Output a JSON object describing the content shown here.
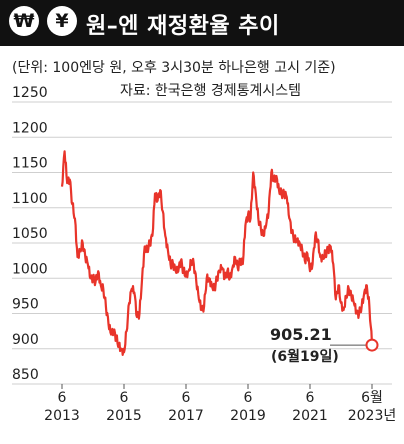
{
  "header": {
    "title": "원–엔 재정환율 추이",
    "icons": [
      "won-coin-icon",
      "yen-coin-icon"
    ],
    "won_symbol": "₩",
    "yen_symbol": "¥"
  },
  "notes": {
    "unit": "(단위: 100엔당 원, 오후 3시30분 하나은행 고시 기준)",
    "source": "자료: 한국은행 경제통계시스템"
  },
  "colors": {
    "line": "#e8342a",
    "header_bg": "#111111",
    "grid": "#cfcfcf"
  },
  "chart_data": {
    "type": "line",
    "title": "원–엔 재정환율 추이",
    "xlabel": "",
    "ylabel": "",
    "ylim": [
      850,
      1250
    ],
    "yticks": [
      850,
      900,
      950,
      1000,
      1050,
      1100,
      1150,
      1200,
      1250
    ],
    "xlim": [
      "2013-06",
      "2023-06"
    ],
    "xticks": [
      {
        "x": "2013-06",
        "month": "6",
        "year": "2013"
      },
      {
        "x": "2015-06",
        "month": "6",
        "year": "2015"
      },
      {
        "x": "2017-06",
        "month": "6",
        "year": "2017"
      },
      {
        "x": "2019-06",
        "month": "6",
        "year": "2019"
      },
      {
        "x": "2021-06",
        "month": "6",
        "year": "2021"
      },
      {
        "x": "2023-06",
        "month": "6월",
        "year": "2023년"
      }
    ],
    "grid": "horizontal",
    "series": [
      {
        "points": [
          [
            "2013-06",
            1130
          ],
          [
            "2013-07",
            1180
          ],
          [
            "2013-08",
            1135
          ],
          [
            "2013-09",
            1140
          ],
          [
            "2013-10",
            1105
          ],
          [
            "2013-11",
            1085
          ],
          [
            "2013-12",
            1030
          ],
          [
            "2014-01",
            1040
          ],
          [
            "2014-02",
            1050
          ],
          [
            "2014-03",
            1030
          ],
          [
            "2014-04",
            1020
          ],
          [
            "2014-05",
            1000
          ],
          [
            "2014-06",
            1000
          ],
          [
            "2014-07",
            995
          ],
          [
            "2014-08",
            1010
          ],
          [
            "2014-09",
            990
          ],
          [
            "2014-10",
            985
          ],
          [
            "2014-11",
            960
          ],
          [
            "2014-12",
            935
          ],
          [
            "2015-01",
            920
          ],
          [
            "2015-02",
            925
          ],
          [
            "2015-03",
            915
          ],
          [
            "2015-04",
            905
          ],
          [
            "2015-05",
            900
          ],
          [
            "2015-06",
            895
          ],
          [
            "2015-07",
            925
          ],
          [
            "2015-08",
            965
          ],
          [
            "2015-09",
            985
          ],
          [
            "2015-10",
            980
          ],
          [
            "2015-11",
            945
          ],
          [
            "2015-12",
            950
          ],
          [
            "2016-01",
            1000
          ],
          [
            "2016-02",
            1045
          ],
          [
            "2016-03",
            1040
          ],
          [
            "2016-04",
            1050
          ],
          [
            "2016-05",
            1060
          ],
          [
            "2016-06",
            1120
          ],
          [
            "2016-07",
            1110
          ],
          [
            "2016-08",
            1125
          ],
          [
            "2016-09",
            1095
          ],
          [
            "2016-10",
            1060
          ],
          [
            "2016-11",
            1040
          ],
          [
            "2016-12",
            1020
          ],
          [
            "2017-01",
            1020
          ],
          [
            "2017-02",
            1010
          ],
          [
            "2017-03",
            1010
          ],
          [
            "2017-04",
            1025
          ],
          [
            "2017-05",
            1010
          ],
          [
            "2017-06",
            1005
          ],
          [
            "2017-07",
            1010
          ],
          [
            "2017-08",
            1025
          ],
          [
            "2017-09",
            1020
          ],
          [
            "2017-10",
            995
          ],
          [
            "2017-11",
            970
          ],
          [
            "2017-12",
            955
          ],
          [
            "2018-01",
            960
          ],
          [
            "2018-02",
            1000
          ],
          [
            "2018-03",
            1000
          ],
          [
            "2018-04",
            990
          ],
          [
            "2018-05",
            985
          ],
          [
            "2018-06",
            1000
          ],
          [
            "2018-07",
            1010
          ],
          [
            "2018-08",
            1015
          ],
          [
            "2018-09",
            1000
          ],
          [
            "2018-10",
            1010
          ],
          [
            "2018-11",
            1000
          ],
          [
            "2018-12",
            1015
          ],
          [
            "2019-01",
            1030
          ],
          [
            "2019-02",
            1015
          ],
          [
            "2019-03",
            1025
          ],
          [
            "2019-04",
            1020
          ],
          [
            "2019-05",
            1075
          ],
          [
            "2019-06",
            1090
          ],
          [
            "2019-07",
            1085
          ],
          [
            "2019-08",
            1150
          ],
          [
            "2019-09",
            1120
          ],
          [
            "2019-10",
            1085
          ],
          [
            "2019-11",
            1070
          ],
          [
            "2019-12",
            1060
          ],
          [
            "2020-01",
            1075
          ],
          [
            "2020-02",
            1095
          ],
          [
            "2020-03",
            1150
          ],
          [
            "2020-04",
            1140
          ],
          [
            "2020-05",
            1145
          ],
          [
            "2020-06",
            1125
          ],
          [
            "2020-07",
            1120
          ],
          [
            "2020-08",
            1120
          ],
          [
            "2020-09",
            1115
          ],
          [
            "2020-10",
            1085
          ],
          [
            "2020-11",
            1065
          ],
          [
            "2020-12",
            1055
          ],
          [
            "2021-01",
            1055
          ],
          [
            "2021-02",
            1050
          ],
          [
            "2021-03",
            1040
          ],
          [
            "2021-04",
            1025
          ],
          [
            "2021-05",
            1035
          ],
          [
            "2021-06",
            1010
          ],
          [
            "2021-07",
            1020
          ],
          [
            "2021-08",
            1060
          ],
          [
            "2021-09",
            1055
          ],
          [
            "2021-10",
            1030
          ],
          [
            "2021-11",
            1030
          ],
          [
            "2021-12",
            1035
          ],
          [
            "2022-01",
            1040
          ],
          [
            "2022-02",
            1045
          ],
          [
            "2022-03",
            1020
          ],
          [
            "2022-04",
            970
          ],
          [
            "2022-05",
            990
          ],
          [
            "2022-06",
            965
          ],
          [
            "2022-07",
            955
          ],
          [
            "2022-08",
            975
          ],
          [
            "2022-09",
            985
          ],
          [
            "2022-10",
            975
          ],
          [
            "2022-11",
            965
          ],
          [
            "2022-12",
            950
          ],
          [
            "2023-01",
            950
          ],
          [
            "2023-02",
            960
          ],
          [
            "2023-03",
            980
          ],
          [
            "2023-04",
            990
          ],
          [
            "2023-05",
            960
          ],
          [
            "2023-06",
            905.21
          ]
        ]
      }
    ],
    "annotation": {
      "x": "2023-06",
      "y": 905.21,
      "value": "905.21",
      "date": "(6월19일)"
    }
  }
}
